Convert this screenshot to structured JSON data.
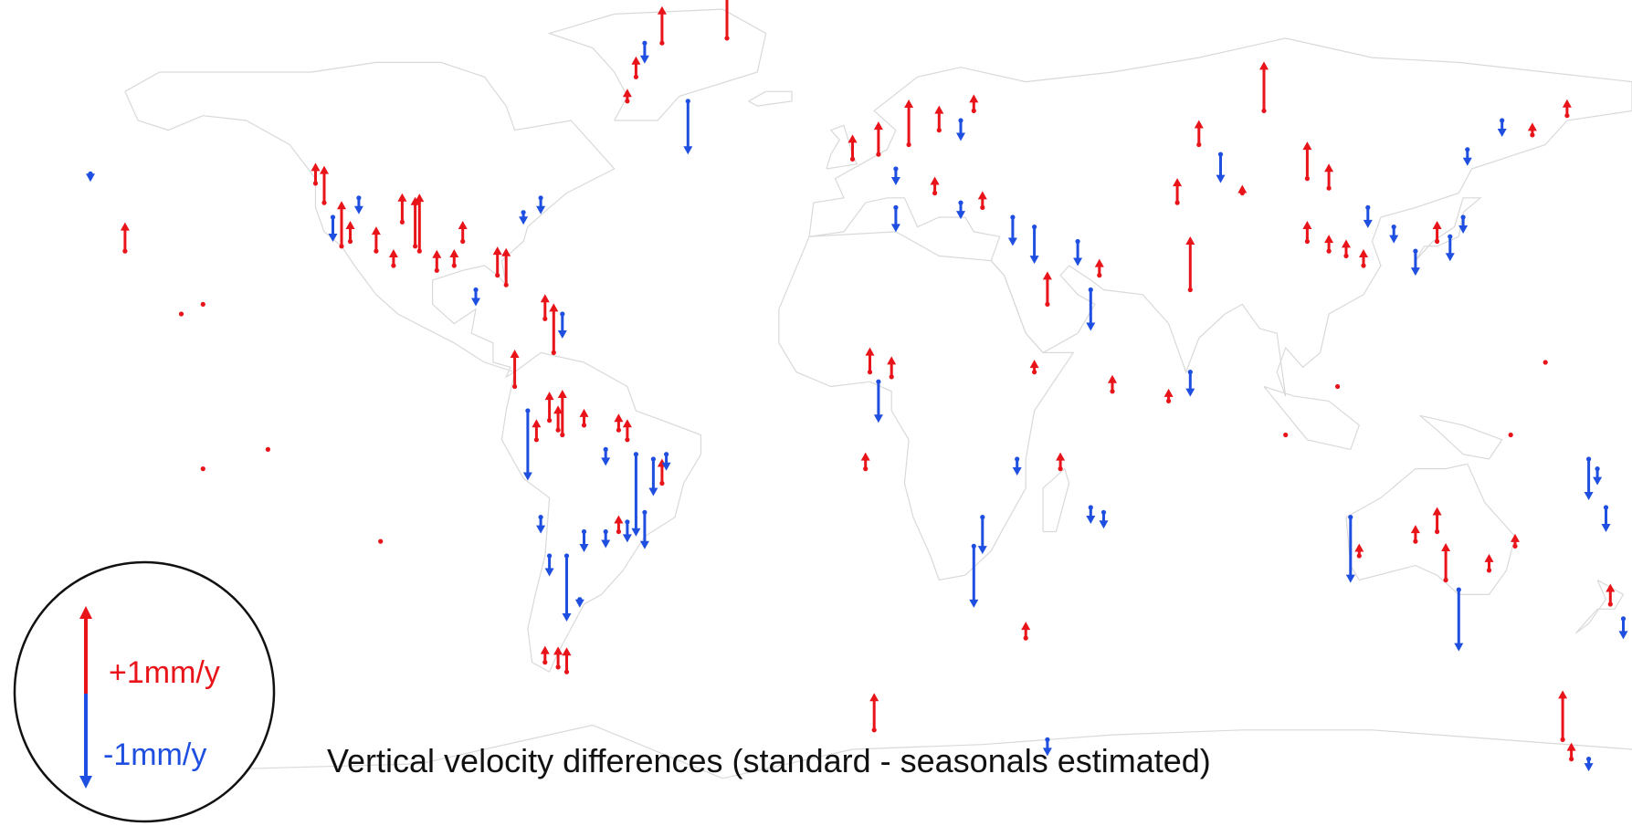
{
  "caption": "Vertical velocity differences (standard - seasonals estimated)",
  "legend": {
    "up_label": "+1mm/y",
    "down_label": "-1mm/y"
  },
  "colors": {
    "up": "#e8141a",
    "down": "#1f4fe0",
    "coast": "#d9d9d9",
    "legend_ring": "#111111"
  },
  "arrow_units": "mm/y",
  "stations": [
    {
      "lon": -168,
      "lat": 33,
      "v": 0.35
    },
    {
      "lon": -176,
      "lat": 49,
      "v": -0.1
    },
    {
      "lon": -124,
      "lat": 47,
      "v": 0.25
    },
    {
      "lon": -122,
      "lat": 43,
      "v": 0.45
    },
    {
      "lon": -120,
      "lat": 40,
      "v": -0.3
    },
    {
      "lon": -118,
      "lat": 34,
      "v": 0.55
    },
    {
      "lon": -116,
      "lat": 35,
      "v": 0.25
    },
    {
      "lon": -114,
      "lat": 44,
      "v": -0.2
    },
    {
      "lon": -110,
      "lat": 33,
      "v": 0.3
    },
    {
      "lon": -106,
      "lat": 30,
      "v": 0.2
    },
    {
      "lon": -104,
      "lat": 39,
      "v": 0.35
    },
    {
      "lon": -101,
      "lat": 34,
      "v": 0.6
    },
    {
      "lon": -100,
      "lat": 33,
      "v": 0.7
    },
    {
      "lon": -96,
      "lat": 29,
      "v": 0.25
    },
    {
      "lon": -92,
      "lat": 30,
      "v": 0.2
    },
    {
      "lon": -90,
      "lat": 35,
      "v": 0.25
    },
    {
      "lon": -87,
      "lat": 25,
      "v": -0.2
    },
    {
      "lon": -82,
      "lat": 28,
      "v": 0.35
    },
    {
      "lon": -80,
      "lat": 26,
      "v": 0.45
    },
    {
      "lon": -76,
      "lat": 41,
      "v": -0.15
    },
    {
      "lon": -72,
      "lat": 44,
      "v": -0.2
    },
    {
      "lon": -71,
      "lat": 19,
      "v": 0.3
    },
    {
      "lon": -69,
      "lat": 12,
      "v": 0.6
    },
    {
      "lon": -67,
      "lat": 20,
      "v": -0.3
    },
    {
      "lon": -78,
      "lat": 5,
      "v": 0.45
    },
    {
      "lon": -75,
      "lat": 0,
      "v": -0.85
    },
    {
      "lon": -73,
      "lat": -6,
      "v": 0.25
    },
    {
      "lon": -70,
      "lat": -2,
      "v": 0.35
    },
    {
      "lon": -68,
      "lat": -4,
      "v": 0.3
    },
    {
      "lon": -67,
      "lat": -5,
      "v": 0.55
    },
    {
      "lon": -62,
      "lat": -3,
      "v": 0.2
    },
    {
      "lon": -57,
      "lat": -8,
      "v": -0.2
    },
    {
      "lon": -54,
      "lat": -4,
      "v": 0.2
    },
    {
      "lon": -52,
      "lat": -6,
      "v": 0.25
    },
    {
      "lon": -50,
      "lat": -9,
      "v": -1.0
    },
    {
      "lon": -46,
      "lat": -10,
      "v": -0.45
    },
    {
      "lon": -44,
      "lat": -15,
      "v": 0.3
    },
    {
      "lon": -43,
      "lat": -9,
      "v": -0.2
    },
    {
      "lon": -72,
      "lat": -22,
      "v": -0.2
    },
    {
      "lon": -70,
      "lat": -30,
      "v": -0.25
    },
    {
      "lon": -66,
      "lat": -30,
      "v": -0.8
    },
    {
      "lon": -62,
      "lat": -25,
      "v": -0.25
    },
    {
      "lon": -57,
      "lat": -25,
      "v": -0.2
    },
    {
      "lon": -54,
      "lat": -25,
      "v": 0.2
    },
    {
      "lon": -52,
      "lat": -23,
      "v": -0.25
    },
    {
      "lon": -48,
      "lat": -21,
      "v": -0.45
    },
    {
      "lon": -63,
      "lat": -39,
      "v": -0.1
    },
    {
      "lon": -71,
      "lat": -52,
      "v": 0.2
    },
    {
      "lon": -68,
      "lat": -53,
      "v": 0.25
    },
    {
      "lon": -66,
      "lat": -54,
      "v": 0.3
    },
    {
      "lon": -29,
      "lat": 77,
      "v": 0.6
    },
    {
      "lon": -44,
      "lat": 76,
      "v": 0.45
    },
    {
      "lon": -48,
      "lat": 76,
      "v": -0.25
    },
    {
      "lon": -50,
      "lat": 69,
      "v": 0.25
    },
    {
      "lon": -38,
      "lat": 64,
      "v": -0.65
    },
    {
      "lon": -52,
      "lat": 64,
      "v": 0.15
    },
    {
      "lon": -150,
      "lat": 22,
      "v": 0.0
    },
    {
      "lon": -155,
      "lat": 20,
      "v": 0.0
    },
    {
      "lon": -135,
      "lat": -8,
      "v": 0.0
    },
    {
      "lon": -150,
      "lat": -12,
      "v": 0.0
    },
    {
      "lon": -109,
      "lat": -27,
      "v": 0.0
    },
    {
      "lon": 0,
      "lat": 52,
      "v": 0.3
    },
    {
      "lon": 6,
      "lat": 53,
      "v": 0.4
    },
    {
      "lon": 10,
      "lat": 50,
      "v": -0.2
    },
    {
      "lon": 13,
      "lat": 55,
      "v": 0.55
    },
    {
      "lon": 20,
      "lat": 58,
      "v": 0.3
    },
    {
      "lon": 25,
      "lat": 60,
      "v": -0.25
    },
    {
      "lon": 28,
      "lat": 62,
      "v": 0.2
    },
    {
      "lon": 10,
      "lat": 42,
      "v": -0.3
    },
    {
      "lon": 19,
      "lat": 45,
      "v": 0.2
    },
    {
      "lon": 25,
      "lat": 43,
      "v": -0.2
    },
    {
      "lon": 30,
      "lat": 42,
      "v": 0.2
    },
    {
      "lon": 37,
      "lat": 40,
      "v": -0.35
    },
    {
      "lon": 42,
      "lat": 38,
      "v": -0.45
    },
    {
      "lon": 52,
      "lat": 35,
      "v": -0.3
    },
    {
      "lon": 55,
      "lat": 25,
      "v": -0.5
    },
    {
      "lon": 57,
      "lat": 28,
      "v": 0.2
    },
    {
      "lon": 45,
      "lat": 22,
      "v": 0.4
    },
    {
      "lon": 4,
      "lat": 8,
      "v": 0.3
    },
    {
      "lon": 6,
      "lat": 6,
      "v": -0.5
    },
    {
      "lon": 9,
      "lat": 7,
      "v": 0.25
    },
    {
      "lon": 3,
      "lat": -12,
      "v": 0.2
    },
    {
      "lon": 42,
      "lat": 8,
      "v": 0.15
    },
    {
      "lon": 30,
      "lat": -22,
      "v": -0.45
    },
    {
      "lon": 28,
      "lat": -28,
      "v": -0.75
    },
    {
      "lon": 38,
      "lat": -10,
      "v": -0.2
    },
    {
      "lon": 48,
      "lat": -12,
      "v": 0.2
    },
    {
      "lon": 40,
      "lat": -47,
      "v": 0.2
    },
    {
      "lon": 5,
      "lat": -66,
      "v": 0.45
    },
    {
      "lon": 45,
      "lat": -68,
      "v": -0.2
    },
    {
      "lon": 80,
      "lat": 55,
      "v": 0.3
    },
    {
      "lon": 85,
      "lat": 53,
      "v": -0.35
    },
    {
      "lon": 95,
      "lat": 62,
      "v": 0.6
    },
    {
      "lon": 75,
      "lat": 43,
      "v": 0.3
    },
    {
      "lon": 78,
      "lat": 25,
      "v": 0.65
    },
    {
      "lon": 78,
      "lat": 8,
      "v": -0.3
    },
    {
      "lon": 73,
      "lat": 2,
      "v": 0.15
    },
    {
      "lon": 60,
      "lat": 4,
      "v": 0.2
    },
    {
      "lon": 55,
      "lat": -20,
      "v": -0.2
    },
    {
      "lon": 58,
      "lat": -21,
      "v": -0.2
    },
    {
      "lon": 90,
      "lat": 45,
      "v": 0.1
    },
    {
      "lon": 105,
      "lat": 48,
      "v": 0.45
    },
    {
      "lon": 110,
      "lat": 46,
      "v": 0.3
    },
    {
      "lon": 119,
      "lat": 42,
      "v": -0.25
    },
    {
      "lon": 105,
      "lat": 35,
      "v": 0.25
    },
    {
      "lon": 110,
      "lat": 33,
      "v": 0.2
    },
    {
      "lon": 114,
      "lat": 32,
      "v": 0.2
    },
    {
      "lon": 118,
      "lat": 30,
      "v": 0.2
    },
    {
      "lon": 125,
      "lat": 38,
      "v": -0.2
    },
    {
      "lon": 130,
      "lat": 33,
      "v": -0.3
    },
    {
      "lon": 135,
      "lat": 35,
      "v": 0.25
    },
    {
      "lon": 138,
      "lat": 36,
      "v": -0.3
    },
    {
      "lon": 141,
      "lat": 40,
      "v": -0.2
    },
    {
      "lon": 142,
      "lat": 54,
      "v": -0.2
    },
    {
      "lon": 150,
      "lat": 60,
      "v": -0.2
    },
    {
      "lon": 157,
      "lat": 57,
      "v": 0.15
    },
    {
      "lon": 165,
      "lat": 61,
      "v": 0.2
    },
    {
      "lon": 115,
      "lat": -22,
      "v": -0.8
    },
    {
      "lon": 117,
      "lat": -30,
      "v": 0.15
    },
    {
      "lon": 130,
      "lat": -27,
      "v": 0.2
    },
    {
      "lon": 135,
      "lat": -25,
      "v": 0.3
    },
    {
      "lon": 137,
      "lat": -35,
      "v": 0.45
    },
    {
      "lon": 140,
      "lat": -37,
      "v": -0.75
    },
    {
      "lon": 147,
      "lat": -33,
      "v": 0.2
    },
    {
      "lon": 153,
      "lat": -28,
      "v": 0.15
    },
    {
      "lon": 170,
      "lat": -10,
      "v": -0.5
    },
    {
      "lon": 172,
      "lat": -12,
      "v": -0.2
    },
    {
      "lon": 174,
      "lat": -20,
      "v": -0.3
    },
    {
      "lon": 175,
      "lat": -40,
      "v": 0.25
    },
    {
      "lon": 178,
      "lat": -43,
      "v": -0.25
    },
    {
      "lon": 164,
      "lat": -68,
      "v": 0.6
    },
    {
      "lon": 166,
      "lat": -72,
      "v": 0.2
    },
    {
      "lon": 170,
      "lat": -72,
      "v": -0.15
    },
    {
      "lon": 100,
      "lat": -5,
      "v": 0.0
    },
    {
      "lon": 112,
      "lat": 5,
      "v": 0.0
    },
    {
      "lon": 152,
      "lat": -5,
      "v": 0.0
    },
    {
      "lon": 160,
      "lat": 10,
      "v": 0.0
    }
  ]
}
